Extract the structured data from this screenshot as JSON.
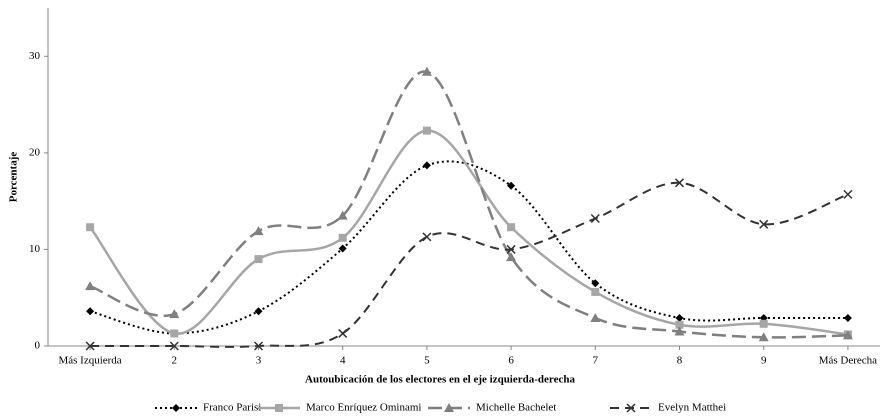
{
  "chart_data": {
    "type": "line",
    "x_label": "Autoubicación  de los electores en el eje izquierda-derecha",
    "y_label": "Porcentaje",
    "categories": [
      "Más Izquierda",
      "2",
      "3",
      "4",
      "5",
      "6",
      "7",
      "8",
      "9",
      "Más Derecha"
    ],
    "ylim": [
      0,
      35
    ],
    "yticks": [
      0,
      10,
      20,
      30
    ],
    "grid": false,
    "legend": "bottom",
    "series": [
      {
        "name": "Franco Parisi",
        "color": "#000000",
        "dash": "2,3",
        "marker": "diamond",
        "width": 2,
        "values": [
          3.6,
          1.3,
          3.6,
          10.1,
          18.7,
          16.6,
          6.5,
          2.9,
          2.9,
          2.9
        ]
      },
      {
        "name": "Marco Enríquez Ominami",
        "color": "#a6a6a6",
        "dash": "",
        "marker": "square",
        "width": 2.5,
        "values": [
          12.3,
          1.3,
          9.0,
          11.2,
          22.3,
          12.3,
          5.6,
          2.2,
          2.3,
          1.2
        ]
      },
      {
        "name": "Michelle Bachelet",
        "color": "#808080",
        "dash": "14,6",
        "marker": "triangle",
        "width": 2.5,
        "values": [
          6.2,
          3.3,
          11.9,
          13.5,
          28.4,
          9.2,
          2.9,
          1.5,
          0.9,
          1.1
        ]
      },
      {
        "name": "Evelyn Matthei",
        "color": "#333333",
        "dash": "9,6",
        "marker": "x",
        "width": 2,
        "values": [
          0,
          0,
          0,
          1.3,
          11.3,
          10.0,
          13.2,
          16.9,
          12.6,
          15.7
        ]
      }
    ]
  }
}
